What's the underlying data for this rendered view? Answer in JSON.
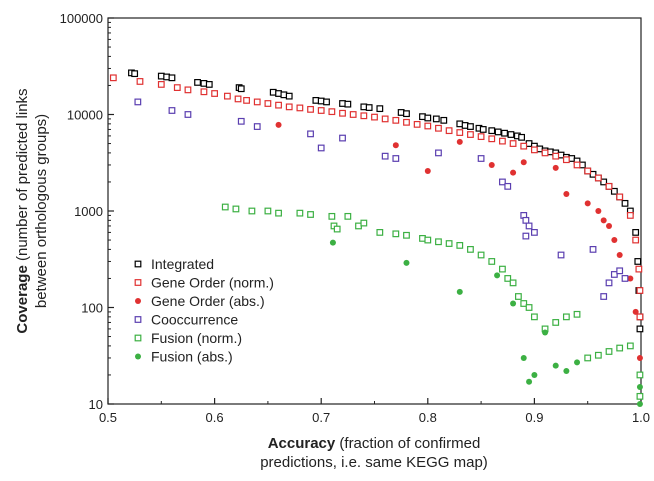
{
  "chart_data": {
    "type": "scatter",
    "xlim": [
      0.5,
      1.0
    ],
    "ylim": [
      10,
      100000
    ],
    "yscale": "log",
    "x_ticks": [
      0.5,
      0.6,
      0.7,
      0.8,
      0.9,
      1.0
    ],
    "x_tick_labels": [
      "0.5",
      "0.6",
      "0.7",
      "0.8",
      "0.9",
      "1.0"
    ],
    "y_ticks": [
      10,
      100,
      1000,
      10000,
      100000
    ],
    "y_tick_labels": [
      "10",
      "100",
      "1000",
      "10000",
      "100000"
    ],
    "xlabel": {
      "bold": "Accuracy",
      "line1": " (fraction of confirmed",
      "line2": "predictions, i.e. same KEGG map)"
    },
    "ylabel": {
      "bold": "Coverage",
      "line1": " (number of predicted links",
      "line2": "between orthologous groups)"
    },
    "grid": false,
    "legend_position": "lower-left",
    "series": [
      {
        "name": "Integrated",
        "marker": "open-square",
        "color": "#000000",
        "points": [
          [
            0.522,
            27000
          ],
          [
            0.525,
            26500
          ],
          [
            0.55,
            25000
          ],
          [
            0.555,
            24500
          ],
          [
            0.56,
            24000
          ],
          [
            0.584,
            21500
          ],
          [
            0.59,
            21000
          ],
          [
            0.595,
            20500
          ],
          [
            0.623,
            19000
          ],
          [
            0.625,
            18500
          ],
          [
            0.655,
            17000
          ],
          [
            0.66,
            16500
          ],
          [
            0.665,
            16000
          ],
          [
            0.67,
            15500
          ],
          [
            0.695,
            14000
          ],
          [
            0.7,
            13800
          ],
          [
            0.705,
            13500
          ],
          [
            0.72,
            13000
          ],
          [
            0.725,
            12800
          ],
          [
            0.74,
            12000
          ],
          [
            0.745,
            11800
          ],
          [
            0.755,
            11500
          ],
          [
            0.775,
            10500
          ],
          [
            0.78,
            10200
          ],
          [
            0.795,
            9500
          ],
          [
            0.8,
            9200
          ],
          [
            0.808,
            9000
          ],
          [
            0.815,
            8700
          ],
          [
            0.83,
            8000
          ],
          [
            0.835,
            7700
          ],
          [
            0.84,
            7500
          ],
          [
            0.848,
            7200
          ],
          [
            0.852,
            7000
          ],
          [
            0.86,
            6800
          ],
          [
            0.866,
            6600
          ],
          [
            0.872,
            6400
          ],
          [
            0.878,
            6200
          ],
          [
            0.884,
            6000
          ],
          [
            0.888,
            5800
          ],
          [
            0.895,
            5000
          ],
          [
            0.9,
            4700
          ],
          [
            0.905,
            4400
          ],
          [
            0.91,
            4200
          ],
          [
            0.915,
            4100
          ],
          [
            0.92,
            4000
          ],
          [
            0.925,
            3800
          ],
          [
            0.93,
            3600
          ],
          [
            0.935,
            3500
          ],
          [
            0.94,
            3300
          ],
          [
            0.945,
            3000
          ],
          [
            0.95,
            2600
          ],
          [
            0.955,
            2400
          ],
          [
            0.96,
            2200
          ],
          [
            0.965,
            2000
          ],
          [
            0.97,
            1800
          ],
          [
            0.975,
            1600
          ],
          [
            0.98,
            1400
          ],
          [
            0.985,
            1200
          ],
          [
            0.99,
            1000
          ],
          [
            0.995,
            600
          ],
          [
            0.997,
            300
          ],
          [
            0.998,
            150
          ],
          [
            0.999,
            80
          ],
          [
            0.999,
            60
          ]
        ]
      },
      {
        "name": "Gene Order (norm.)",
        "marker": "open-square",
        "color": "#e03131",
        "points": [
          [
            0.505,
            24000
          ],
          [
            0.53,
            22000
          ],
          [
            0.55,
            20500
          ],
          [
            0.565,
            19000
          ],
          [
            0.575,
            18000
          ],
          [
            0.59,
            17200
          ],
          [
            0.6,
            16500
          ],
          [
            0.612,
            15500
          ],
          [
            0.622,
            14500
          ],
          [
            0.63,
            14000
          ],
          [
            0.64,
            13500
          ],
          [
            0.65,
            13000
          ],
          [
            0.66,
            12500
          ],
          [
            0.67,
            12000
          ],
          [
            0.68,
            11700
          ],
          [
            0.69,
            11300
          ],
          [
            0.7,
            11000
          ],
          [
            0.71,
            10700
          ],
          [
            0.72,
            10300
          ],
          [
            0.73,
            10000
          ],
          [
            0.74,
            9700
          ],
          [
            0.75,
            9400
          ],
          [
            0.76,
            9000
          ],
          [
            0.77,
            8700
          ],
          [
            0.78,
            8300
          ],
          [
            0.79,
            7900
          ],
          [
            0.8,
            7600
          ],
          [
            0.81,
            7200
          ],
          [
            0.82,
            6800
          ],
          [
            0.83,
            6500
          ],
          [
            0.84,
            6200
          ],
          [
            0.85,
            5900
          ],
          [
            0.86,
            5600
          ],
          [
            0.87,
            5300
          ],
          [
            0.88,
            5000
          ],
          [
            0.89,
            4700
          ],
          [
            0.9,
            4300
          ],
          [
            0.91,
            4000
          ],
          [
            0.92,
            3700
          ],
          [
            0.93,
            3400
          ],
          [
            0.94,
            3000
          ],
          [
            0.95,
            2600
          ],
          [
            0.96,
            2200
          ],
          [
            0.97,
            1800
          ],
          [
            0.98,
            1400
          ],
          [
            0.99,
            900
          ],
          [
            0.995,
            500
          ],
          [
            0.998,
            250
          ],
          [
            0.999,
            150
          ],
          [
            0.999,
            80
          ]
        ]
      },
      {
        "name": "Gene Order (abs.)",
        "marker": "filled-circle",
        "color": "#e03131",
        "points": [
          [
            0.66,
            7800
          ],
          [
            0.77,
            4800
          ],
          [
            0.8,
            2600
          ],
          [
            0.83,
            5200
          ],
          [
            0.86,
            3000
          ],
          [
            0.88,
            2500
          ],
          [
            0.89,
            3200
          ],
          [
            0.92,
            2800
          ],
          [
            0.93,
            1500
          ],
          [
            0.95,
            1200
          ],
          [
            0.96,
            1000
          ],
          [
            0.965,
            800
          ],
          [
            0.97,
            700
          ],
          [
            0.975,
            500
          ],
          [
            0.98,
            350
          ],
          [
            0.99,
            200
          ],
          [
            0.995,
            90
          ],
          [
            0.999,
            30
          ]
        ]
      },
      {
        "name": "Cooccurrence",
        "marker": "open-square",
        "color": "#5b3fb0",
        "points": [
          [
            0.528,
            13500
          ],
          [
            0.56,
            11000
          ],
          [
            0.575,
            10000
          ],
          [
            0.625,
            8500
          ],
          [
            0.64,
            7500
          ],
          [
            0.69,
            6300
          ],
          [
            0.7,
            4500
          ],
          [
            0.72,
            5700
          ],
          [
            0.76,
            3700
          ],
          [
            0.77,
            3500
          ],
          [
            0.81,
            4000
          ],
          [
            0.85,
            3500
          ],
          [
            0.87,
            2000
          ],
          [
            0.875,
            1800
          ],
          [
            0.89,
            900
          ],
          [
            0.892,
            800
          ],
          [
            0.895,
            700
          ],
          [
            0.9,
            600
          ],
          [
            0.892,
            550
          ],
          [
            0.925,
            350
          ],
          [
            0.955,
            400
          ],
          [
            0.965,
            130
          ],
          [
            0.97,
            180
          ],
          [
            0.975,
            220
          ],
          [
            0.98,
            240
          ],
          [
            0.985,
            200
          ]
        ]
      },
      {
        "name": "Fusion (norm.)",
        "marker": "open-square",
        "color": "#3cb043",
        "points": [
          [
            0.61,
            1100
          ],
          [
            0.62,
            1050
          ],
          [
            0.635,
            1000
          ],
          [
            0.65,
            1000
          ],
          [
            0.66,
            950
          ],
          [
            0.68,
            950
          ],
          [
            0.69,
            920
          ],
          [
            0.71,
            880
          ],
          [
            0.712,
            700
          ],
          [
            0.715,
            650
          ],
          [
            0.725,
            880
          ],
          [
            0.735,
            700
          ],
          [
            0.74,
            750
          ],
          [
            0.755,
            600
          ],
          [
            0.77,
            580
          ],
          [
            0.78,
            560
          ],
          [
            0.795,
            520
          ],
          [
            0.8,
            500
          ],
          [
            0.81,
            480
          ],
          [
            0.82,
            460
          ],
          [
            0.83,
            440
          ],
          [
            0.84,
            400
          ],
          [
            0.85,
            350
          ],
          [
            0.86,
            300
          ],
          [
            0.87,
            250
          ],
          [
            0.875,
            200
          ],
          [
            0.88,
            180
          ],
          [
            0.885,
            130
          ],
          [
            0.89,
            110
          ],
          [
            0.895,
            100
          ],
          [
            0.9,
            80
          ],
          [
            0.91,
            60
          ],
          [
            0.92,
            70
          ],
          [
            0.93,
            80
          ],
          [
            0.94,
            85
          ],
          [
            0.95,
            30
          ],
          [
            0.96,
            32
          ],
          [
            0.97,
            35
          ],
          [
            0.98,
            38
          ],
          [
            0.99,
            40
          ],
          [
            0.999,
            20
          ],
          [
            0.999,
            12
          ]
        ]
      },
      {
        "name": "Fusion (abs.)",
        "marker": "filled-circle",
        "color": "#3cb043",
        "points": [
          [
            0.711,
            470
          ],
          [
            0.78,
            290
          ],
          [
            0.83,
            145
          ],
          [
            0.865,
            215
          ],
          [
            0.88,
            110
          ],
          [
            0.89,
            30
          ],
          [
            0.895,
            17
          ],
          [
            0.9,
            20
          ],
          [
            0.91,
            55
          ],
          [
            0.92,
            25
          ],
          [
            0.93,
            22
          ],
          [
            0.94,
            27
          ],
          [
            0.999,
            15
          ],
          [
            0.999,
            10
          ]
        ]
      }
    ]
  }
}
